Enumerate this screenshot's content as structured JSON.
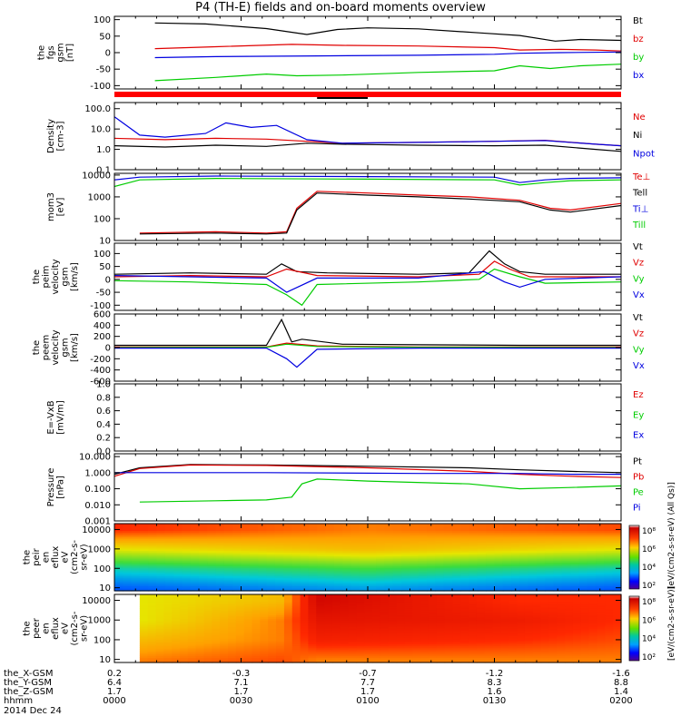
{
  "title": "P4 (TH-E) fields and on-board moments overview",
  "date_label": "2014 Dec 24",
  "colors": {
    "black": "#000000",
    "red": "#e00000",
    "green": "#00cc00",
    "blue": "#0000e0",
    "quality_bar": "#ff0000"
  },
  "xaxis": {
    "rows": [
      {
        "label": "the_X-GSM",
        "values": [
          "0.2",
          "-0.3",
          "-0.7",
          "-1.2",
          "-1.6"
        ]
      },
      {
        "label": "the_Y-GSM",
        "values": [
          "6.4",
          "7.1",
          "7.7",
          "8.3",
          "8.8"
        ]
      },
      {
        "label": "the_Z-GSM",
        "values": [
          "1.7",
          "1.7",
          "1.7",
          "1.6",
          "1.4"
        ]
      },
      {
        "label": "hhmm",
        "values": [
          "0000",
          "0030",
          "0100",
          "0130",
          "0200"
        ]
      }
    ]
  },
  "chart_data": [
    {
      "type": "line",
      "ylabel_lines": [
        "the",
        "fgs",
        "gsm",
        "[nT]"
      ],
      "ylim": [
        -110,
        110
      ],
      "yticks": [
        "100",
        "50",
        "0",
        "-50",
        "-100"
      ],
      "ytick_values": [
        100,
        50,
        0,
        -50,
        -100
      ],
      "series": [
        {
          "name": "Bt",
          "color": "#000000",
          "t": [
            0.08,
            0.18,
            0.3,
            0.38,
            0.44,
            0.5,
            0.6,
            0.72,
            0.8,
            0.87,
            0.92,
            1.0
          ],
          "values": [
            90,
            87,
            73,
            55,
            70,
            75,
            72,
            60,
            52,
            35,
            40,
            37
          ]
        },
        {
          "name": "bz",
          "color": "#e00000",
          "t": [
            0.08,
            0.2,
            0.35,
            0.45,
            0.6,
            0.75,
            0.8,
            0.88,
            0.95,
            1.0
          ],
          "values": [
            12,
            18,
            25,
            22,
            20,
            15,
            8,
            10,
            8,
            5
          ]
        },
        {
          "name": "by",
          "color": "#00cc00",
          "t": [
            0.08,
            0.2,
            0.3,
            0.36,
            0.45,
            0.6,
            0.75,
            0.8,
            0.86,
            0.92,
            1.0
          ],
          "values": [
            -85,
            -75,
            -65,
            -70,
            -68,
            -60,
            -55,
            -40,
            -48,
            -40,
            -35
          ]
        },
        {
          "name": "bx",
          "color": "#0000e0",
          "t": [
            0.08,
            0.2,
            0.4,
            0.6,
            0.75,
            0.8,
            0.88,
            1.0
          ],
          "values": [
            -15,
            -12,
            -10,
            -8,
            -5,
            -2,
            0,
            2
          ]
        }
      ]
    },
    {
      "type": "line",
      "scale": "log",
      "ylabel_lines": [
        "Density",
        "[cm-3]"
      ],
      "ylim": [
        0.1,
        200
      ],
      "yticks": [
        "100.0",
        "10.0",
        "1.0",
        "0.1"
      ],
      "ytick_values": [
        100,
        10,
        1,
        0.1
      ],
      "series": [
        {
          "name": "Ne",
          "color": "#e00000",
          "t": [
            0.0,
            0.1,
            0.2,
            0.3,
            0.38,
            0.45,
            0.6,
            0.75,
            0.85,
            0.95,
            1.0
          ],
          "values": [
            3.5,
            3.0,
            3.5,
            3.2,
            2.5,
            2.0,
            2.2,
            2.5,
            2.8,
            1.8,
            1.5
          ]
        },
        {
          "name": "Ni",
          "color": "#000000",
          "t": [
            0.0,
            0.1,
            0.2,
            0.3,
            0.38,
            0.45,
            0.6,
            0.75,
            0.85,
            0.95,
            1.0
          ],
          "values": [
            1.5,
            1.3,
            1.6,
            1.4,
            2.0,
            1.8,
            1.6,
            1.5,
            1.6,
            1.0,
            0.8
          ]
        },
        {
          "name": "Npot",
          "color": "#0000e0",
          "t": [
            0.0,
            0.05,
            0.1,
            0.18,
            0.22,
            0.27,
            0.32,
            0.38,
            0.45,
            0.6,
            0.75,
            0.85,
            0.95,
            1.0
          ],
          "values": [
            40,
            5,
            4,
            6,
            20,
            12,
            15,
            3,
            2.0,
            2.2,
            2.5,
            2.7,
            1.8,
            1.5
          ]
        }
      ]
    },
    {
      "type": "line",
      "scale": "log",
      "ylabel_lines": [
        "mom3",
        "[eV]"
      ],
      "ylim": [
        10,
        12000
      ],
      "yticks": [
        "10000",
        "1000",
        "100",
        "10"
      ],
      "ytick_values": [
        10000,
        1000,
        100,
        10
      ],
      "series": [
        {
          "name": "Te⊥",
          "color": "#e00000",
          "t": [
            0.05,
            0.2,
            0.3,
            0.34,
            0.36,
            0.4,
            0.5,
            0.6,
            0.7,
            0.8,
            0.86,
            0.9,
            1.0
          ],
          "values": [
            22,
            25,
            22,
            25,
            300,
            1800,
            1500,
            1200,
            1000,
            700,
            300,
            250,
            500
          ]
        },
        {
          "name": "Tell",
          "color": "#000000",
          "t": [
            0.05,
            0.2,
            0.3,
            0.34,
            0.36,
            0.4,
            0.5,
            0.6,
            0.7,
            0.8,
            0.86,
            0.9,
            1.0
          ],
          "values": [
            20,
            22,
            20,
            22,
            250,
            1500,
            1200,
            1000,
            800,
            600,
            250,
            200,
            400
          ]
        },
        {
          "name": "Ti⊥",
          "color": "#0000e0",
          "t": [
            0.0,
            0.05,
            0.2,
            0.5,
            0.75,
            0.8,
            0.85,
            0.9,
            1.0
          ],
          "values": [
            6000,
            8000,
            9000,
            8500,
            8000,
            4500,
            6000,
            7000,
            7500
          ]
        },
        {
          "name": "Till",
          "color": "#00cc00",
          "t": [
            0.0,
            0.05,
            0.2,
            0.5,
            0.75,
            0.8,
            0.85,
            0.9,
            1.0
          ],
          "values": [
            3000,
            6000,
            7000,
            6500,
            6000,
            3500,
            4500,
            5500,
            6000
          ]
        }
      ]
    },
    {
      "type": "line",
      "ylabel_lines": [
        "the",
        "peim",
        "velocity",
        "gsm",
        "[km/s]"
      ],
      "ylim": [
        -120,
        140
      ],
      "yticks": [
        "100",
        "50",
        "0",
        "-50",
        "-100"
      ],
      "ytick_values": [
        100,
        50,
        0,
        -50,
        -100
      ],
      "series": [
        {
          "name": "Vt",
          "color": "#000000",
          "t": [
            0.0,
            0.15,
            0.3,
            0.33,
            0.36,
            0.42,
            0.6,
            0.7,
            0.74,
            0.77,
            0.8,
            0.85,
            1.0
          ],
          "values": [
            20,
            25,
            20,
            60,
            30,
            25,
            20,
            25,
            110,
            60,
            30,
            20,
            20
          ]
        },
        {
          "name": "Vz",
          "color": "#e00000",
          "t": [
            0.0,
            0.15,
            0.3,
            0.34,
            0.4,
            0.6,
            0.72,
            0.75,
            0.78,
            0.82,
            1.0
          ],
          "values": [
            10,
            15,
            10,
            40,
            15,
            10,
            20,
            70,
            40,
            10,
            10
          ]
        },
        {
          "name": "Vy",
          "color": "#00cc00",
          "t": [
            0.0,
            0.15,
            0.3,
            0.34,
            0.37,
            0.4,
            0.6,
            0.72,
            0.75,
            0.8,
            0.85,
            1.0
          ],
          "values": [
            -5,
            -10,
            -20,
            -60,
            -100,
            -20,
            -10,
            0,
            40,
            10,
            -15,
            -10
          ]
        },
        {
          "name": "Vx",
          "color": "#0000e0",
          "t": [
            0.0,
            0.15,
            0.3,
            0.34,
            0.4,
            0.6,
            0.73,
            0.77,
            0.8,
            0.85,
            1.0
          ],
          "values": [
            15,
            10,
            5,
            -50,
            5,
            5,
            30,
            -10,
            -30,
            0,
            10
          ]
        }
      ]
    },
    {
      "type": "line",
      "ylabel_lines": [
        "the",
        "peem",
        "velocity",
        "gsm",
        "[km/s]"
      ],
      "ylim": [
        -600,
        600
      ],
      "yticks": [
        "600",
        "400",
        "200",
        "0",
        "-200",
        "-400",
        "-600"
      ],
      "ytick_values": [
        600,
        400,
        200,
        0,
        -200,
        -400,
        -600
      ],
      "series": [
        {
          "name": "Vt",
          "color": "#000000",
          "t": [
            0.0,
            0.3,
            0.33,
            0.35,
            0.37,
            0.45,
            0.6,
            0.8,
            1.0
          ],
          "values": [
            40,
            40,
            500,
            100,
            150,
            60,
            50,
            40,
            40
          ]
        },
        {
          "name": "Vz",
          "color": "#e00000",
          "t": [
            0.0,
            0.3,
            0.34,
            0.4,
            0.6,
            1.0
          ],
          "values": [
            10,
            10,
            80,
            30,
            10,
            10
          ]
        },
        {
          "name": "Vy",
          "color": "#00cc00",
          "t": [
            0.0,
            0.3,
            0.34,
            0.4,
            0.6,
            1.0
          ],
          "values": [
            0,
            5,
            60,
            20,
            5,
            0
          ]
        },
        {
          "name": "Vx",
          "color": "#0000e0",
          "t": [
            0.0,
            0.3,
            0.34,
            0.36,
            0.4,
            0.6,
            1.0
          ],
          "values": [
            -10,
            -10,
            -200,
            -350,
            -30,
            -10,
            -10
          ]
        }
      ]
    },
    {
      "type": "line",
      "ylabel_lines": [
        "E=-VxB",
        "[mV/m]"
      ],
      "ylim": [
        0,
        1
      ],
      "yticks": [
        "1.0",
        "0.8",
        "0.6",
        "0.4",
        "0.2",
        "0.0"
      ],
      "ytick_values": [
        1.0,
        0.8,
        0.6,
        0.4,
        0.2,
        0.0
      ],
      "series": [
        {
          "name": "Ez",
          "color": "#e00000",
          "t": [],
          "values": []
        },
        {
          "name": "Ey",
          "color": "#00cc00",
          "t": [],
          "values": []
        },
        {
          "name": "Ex",
          "color": "#0000e0",
          "t": [],
          "values": []
        }
      ]
    },
    {
      "type": "line",
      "scale": "log",
      "ylabel_lines": [
        "Pressure",
        "[nPa]"
      ],
      "ylim": [
        0.001,
        15
      ],
      "yticks": [
        "10.000",
        "1.000",
        "0.100",
        "0.010",
        "0.001"
      ],
      "ytick_values": [
        10,
        1,
        0.1,
        0.01,
        0.001
      ],
      "series": [
        {
          "name": "Pt",
          "color": "#000000",
          "t": [
            0.0,
            0.05,
            0.15,
            0.3,
            0.5,
            0.7,
            0.8,
            0.9,
            1.0
          ],
          "values": [
            0.8,
            2.0,
            3.2,
            3.0,
            2.5,
            2.0,
            1.5,
            1.2,
            1.0
          ]
        },
        {
          "name": "Pb",
          "color": "#e00000",
          "t": [
            0.0,
            0.05,
            0.15,
            0.3,
            0.5,
            0.7,
            0.8,
            0.9,
            1.0
          ],
          "values": [
            0.6,
            1.8,
            3.0,
            2.8,
            2.0,
            1.2,
            0.8,
            0.6,
            0.5
          ]
        },
        {
          "name": "Pe",
          "color": "#00cc00",
          "t": [
            0.05,
            0.2,
            0.3,
            0.35,
            0.37,
            0.4,
            0.5,
            0.7,
            0.8,
            0.9,
            1.0
          ],
          "values": [
            0.015,
            0.018,
            0.02,
            0.03,
            0.2,
            0.4,
            0.3,
            0.2,
            0.1,
            0.12,
            0.15
          ]
        },
        {
          "name": "Pi",
          "color": "#0000e0",
          "t": [
            0.0,
            0.3,
            0.6,
            0.8,
            0.9,
            1.0
          ],
          "values": [
            1.0,
            1.0,
            0.9,
            0.9,
            0.8,
            0.8
          ]
        }
      ]
    },
    {
      "type": "heatmap",
      "scale": "log",
      "ylabel_lines": [
        "the",
        "peir",
        "en",
        "eflux",
        "eV",
        "(cm2-s-",
        "sr-eV)"
      ],
      "ylim": [
        7,
        20000
      ],
      "yticks": [
        "10000",
        "1000",
        "100",
        "10"
      ],
      "ytick_values": [
        10000,
        1000,
        100,
        10
      ],
      "colorbar_ticks": [
        "10⁸",
        "10⁶",
        "10⁴",
        "10²"
      ],
      "colorbar_exponents": [
        8,
        6,
        4,
        2
      ],
      "colorbar_label": "eV/(cm2-s-sr-eV) (All Qs)",
      "time_points": [
        0.0,
        0.5,
        1.0
      ],
      "energy_levels": [
        10000,
        1000,
        100,
        10
      ],
      "intensity_log": [
        [
          7.0,
          6.5,
          6.8
        ],
        [
          5.5,
          6.0,
          5.5
        ],
        [
          4.0,
          4.5,
          4.0
        ],
        [
          3.0,
          3.5,
          3.0
        ]
      ]
    },
    {
      "type": "heatmap",
      "scale": "log",
      "ylabel_lines": [
        "the",
        "peer",
        "en",
        "eflux",
        "eV",
        "(cm2-s-",
        "sr-eV)"
      ],
      "ylim": [
        7,
        20000
      ],
      "yticks": [
        "10000",
        "1000",
        "100",
        "10"
      ],
      "ytick_values": [
        10000,
        1000,
        100,
        10
      ],
      "colorbar_ticks": [
        "10⁸",
        "10⁶",
        "10⁴",
        "10²"
      ],
      "colorbar_exponents": [
        8,
        6,
        4,
        2
      ],
      "colorbar_label": "eV/(cm2-s-sr-eV)",
      "time_points": [
        0.05,
        0.33,
        0.4,
        0.8,
        1.0
      ],
      "energy_levels": [
        10000,
        1000,
        100,
        10
      ],
      "intensity_log": [
        [
          5.5,
          6.0,
          7.8,
          7.0,
          7.0
        ],
        [
          5.5,
          6.5,
          7.5,
          7.3,
          7.0
        ],
        [
          6.0,
          6.5,
          7.2,
          7.0,
          6.8
        ],
        [
          6.5,
          6.8,
          6.5,
          6.5,
          6.5
        ]
      ]
    }
  ]
}
